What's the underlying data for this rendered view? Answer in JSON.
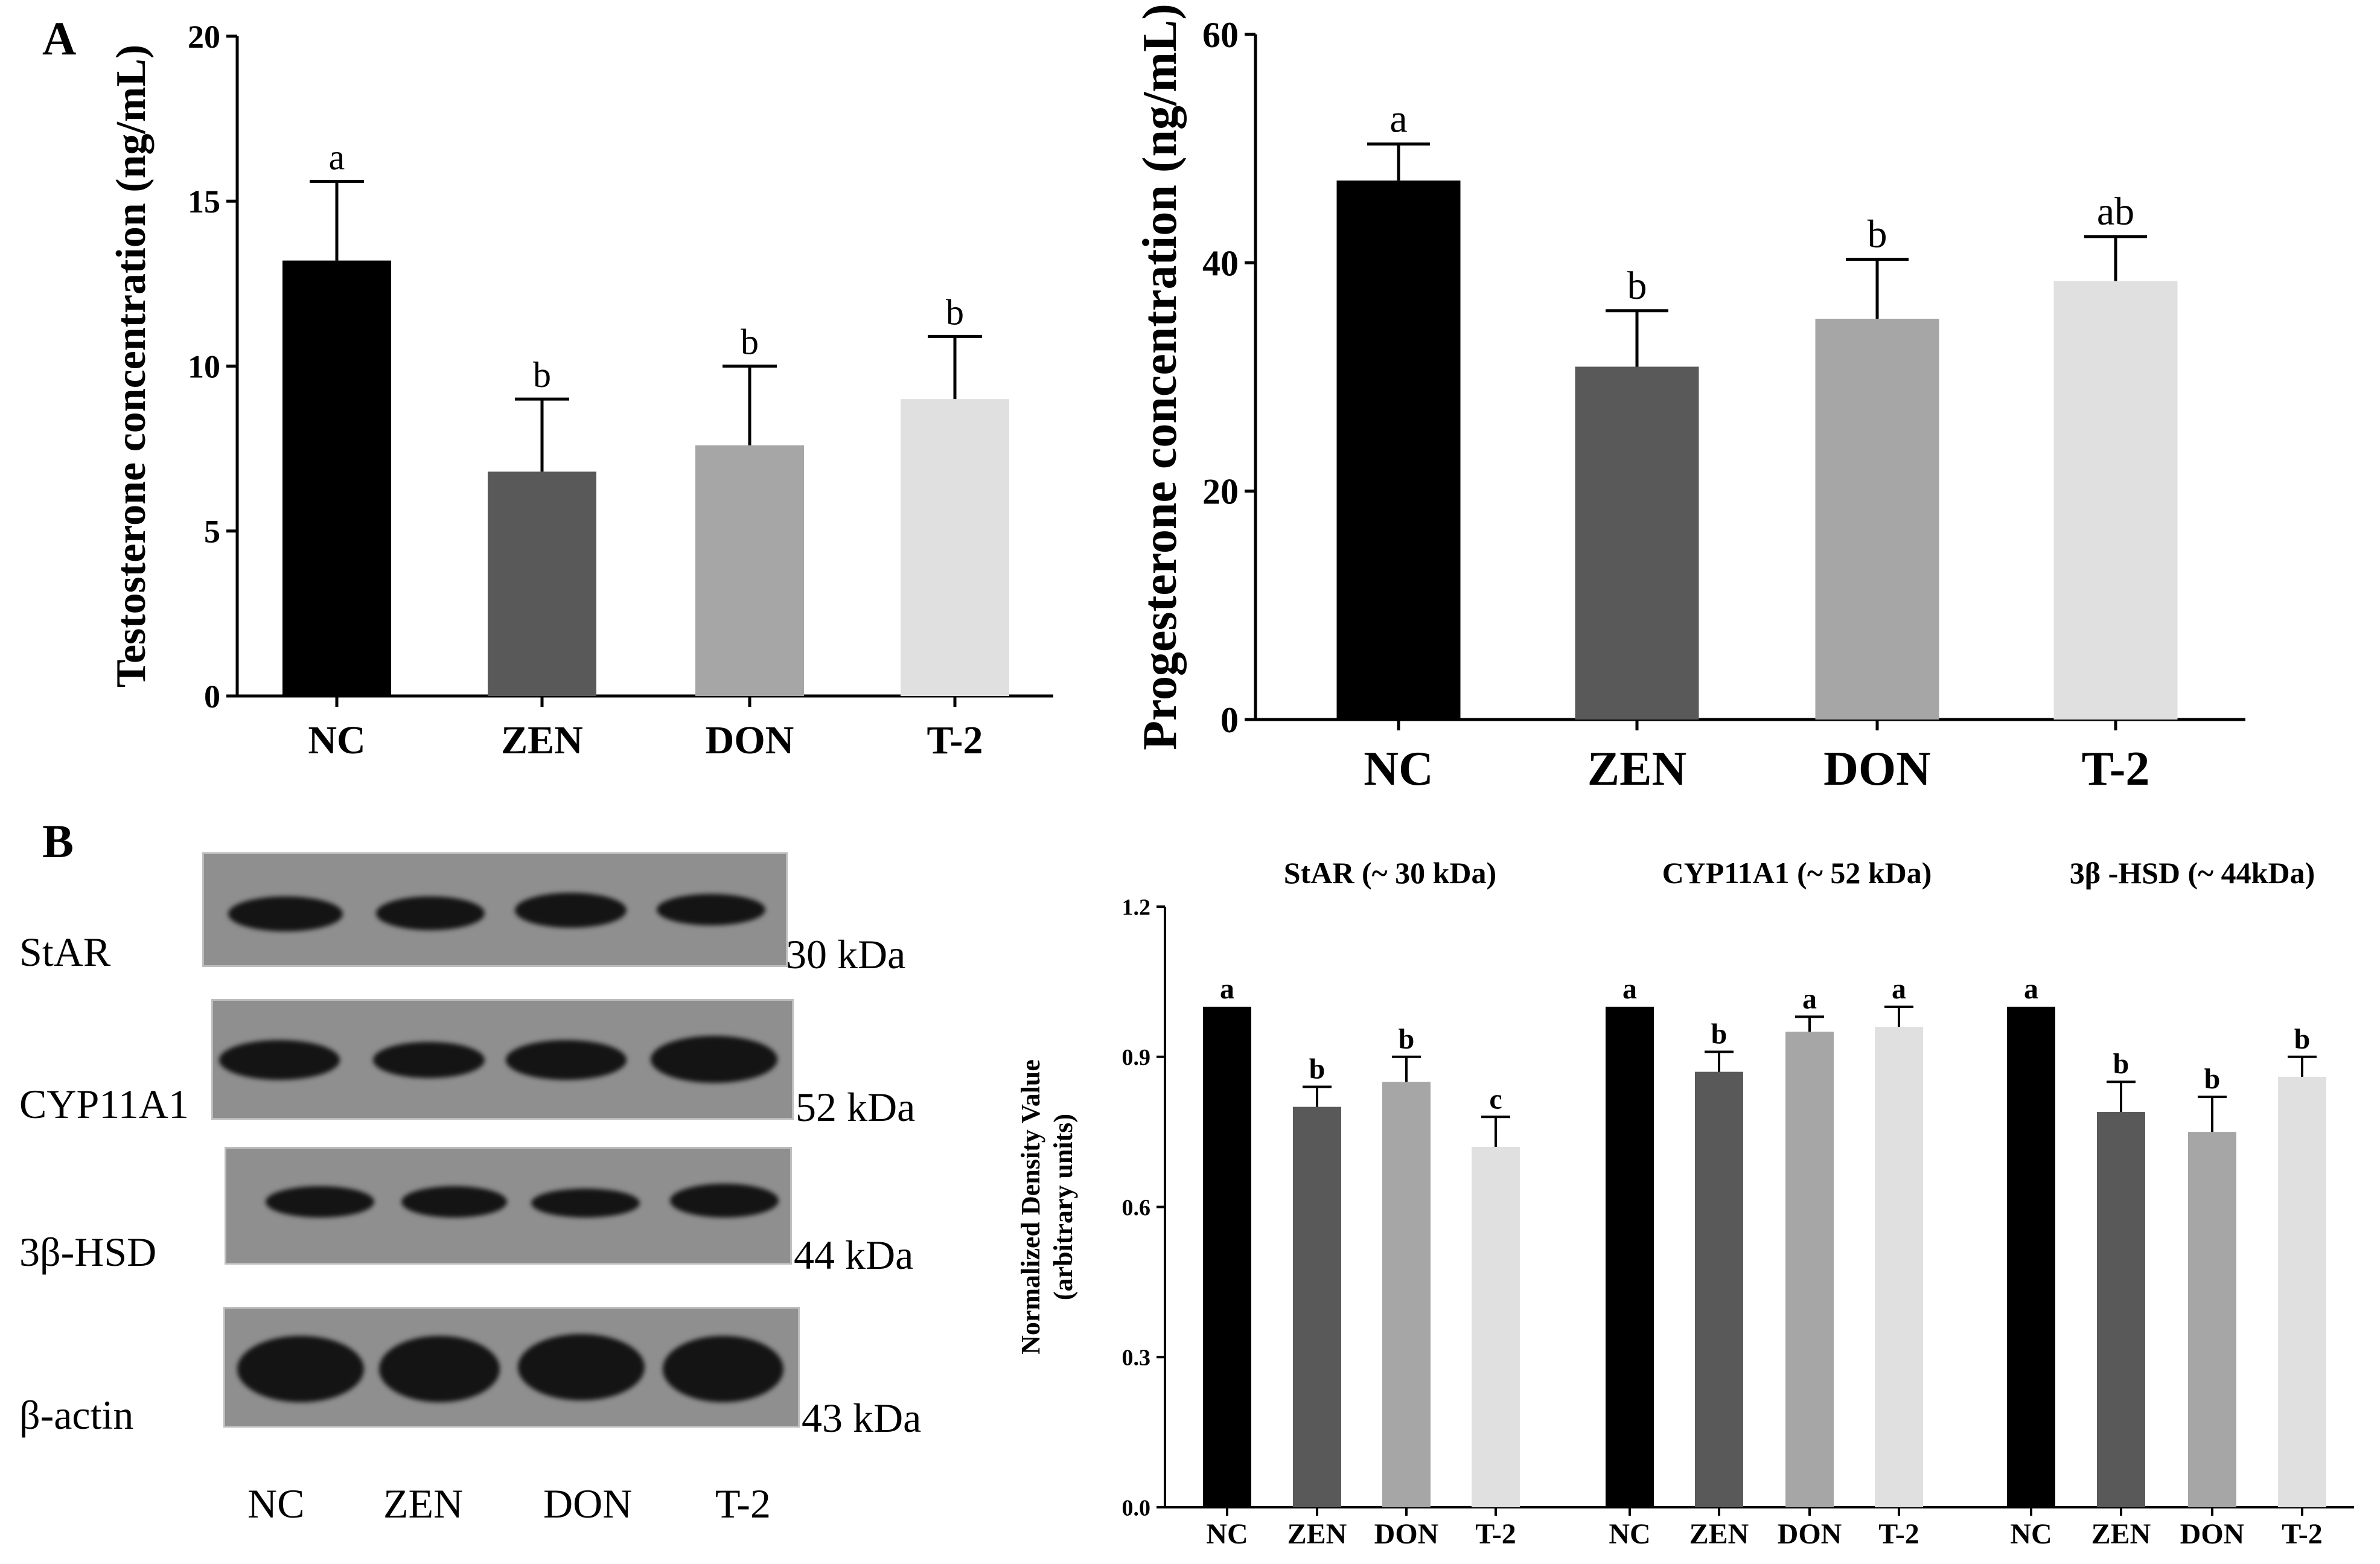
{
  "panels": {
    "a": "A",
    "b": "B"
  },
  "colors": {
    "NC": "#000000",
    "ZEN": "#595959",
    "DON": "#a6a6a6",
    "T-2": "#e0e0e0"
  },
  "chart_data": [
    {
      "id": "testosterone",
      "type": "bar",
      "title": "",
      "ylabel": "Testosterone concentration (ng/mL)",
      "xlabel": "",
      "categories": [
        "NC",
        "ZEN",
        "DON",
        "T-2"
      ],
      "values": [
        13.2,
        6.8,
        7.6,
        9.0
      ],
      "errors": [
        2.4,
        2.2,
        2.4,
        1.9
      ],
      "letters": [
        "a",
        "b",
        "b",
        "b"
      ],
      "ylim": [
        0,
        20
      ],
      "yticks": [
        0,
        5,
        10,
        15,
        20
      ],
      "ytick_labels": [
        "0",
        "5",
        "10",
        "15",
        "20"
      ]
    },
    {
      "id": "progesterone",
      "type": "bar",
      "title": "",
      "ylabel": "Progesterone concentration (ng/mL)",
      "xlabel": "",
      "categories": [
        "NC",
        "ZEN",
        "DON",
        "T-2"
      ],
      "values": [
        47.2,
        30.9,
        35.1,
        38.4
      ],
      "errors": [
        3.2,
        4.9,
        5.2,
        3.9
      ],
      "letters": [
        "a",
        "b",
        "b",
        "ab"
      ],
      "ylim": [
        0,
        60
      ],
      "yticks": [
        0,
        20,
        40,
        60
      ],
      "ytick_labels": [
        "0",
        "20",
        "40",
        "60"
      ]
    },
    {
      "id": "density",
      "type": "bar",
      "ylabel_line1": "Normalized Density Value",
      "ylabel_line2": "(arbitrary units)",
      "ylim": [
        0,
        1.2
      ],
      "yticks": [
        0,
        0.3,
        0.6,
        0.9,
        1.2
      ],
      "ytick_labels": [
        "0.0",
        "0.3",
        "0.6",
        "0.9",
        "1.2"
      ],
      "groups": [
        {
          "title": "StAR (~ 30 kDa)",
          "categories": [
            "NC",
            "ZEN",
            "DON",
            "T-2"
          ],
          "values": [
            1.0,
            0.8,
            0.85,
            0.72
          ],
          "errors": [
            0,
            0.04,
            0.05,
            0.06
          ],
          "letters": [
            "a",
            "b",
            "b",
            "c"
          ]
        },
        {
          "title": "CYP11A1 (~ 52 kDa)",
          "categories": [
            "NC",
            "ZEN",
            "DON",
            "T-2"
          ],
          "values": [
            1.0,
            0.87,
            0.95,
            0.96
          ],
          "errors": [
            0,
            0.04,
            0.03,
            0.04
          ],
          "letters": [
            "a",
            "b",
            "a",
            "a"
          ]
        },
        {
          "title": "3β -HSD (~ 44kDa)",
          "categories": [
            "NC",
            "ZEN",
            "DON",
            "T-2"
          ],
          "values": [
            1.0,
            0.79,
            0.75,
            0.86
          ],
          "errors": [
            0,
            0.06,
            0.07,
            0.04
          ],
          "letters": [
            "a",
            "b",
            "b",
            "b"
          ]
        }
      ]
    }
  ],
  "blot": {
    "rows": [
      {
        "label": "StAR",
        "kda": "30 kDa"
      },
      {
        "label": "CYP11A1",
        "kda": "52 kDa"
      },
      {
        "label": "3β-HSD",
        "kda": "44 kDa"
      },
      {
        "label": "β-actin",
        "kda": "43 kDa"
      }
    ],
    "lanes": [
      "NC",
      "ZEN",
      "DON",
      "T-2"
    ]
  }
}
